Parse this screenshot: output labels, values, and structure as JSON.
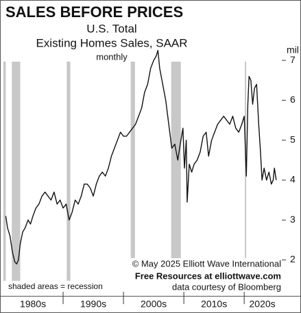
{
  "chart_data": {
    "type": "line",
    "title": "SALES BEFORE PRICES",
    "subtitle": [
      "U.S. Total",
      "Existing Homes Sales, SAAR",
      "monthly"
    ],
    "y_unit": "mil",
    "annotations": [
      "© May 2025  Elliott Wave International",
      "Free Resources at elliottwave.com",
      "data courtesy of Bloomberg"
    ],
    "recession_note": "shaded areas = recession",
    "recessions": [
      [
        1980.1,
        1980.5
      ],
      [
        1981.5,
        1982.9
      ],
      [
        1990.6,
        1991.2
      ],
      [
        2001.2,
        2001.9
      ],
      [
        2007.9,
        2009.5
      ],
      [
        2020.1,
        2020.3
      ]
    ],
    "recession_color": "#c8c8c8",
    "x": [
      1980.5,
      1980.8,
      1981.2,
      1981.6,
      1982.0,
      1982.3,
      1982.6,
      1982.9,
      1983.3,
      1983.7,
      1984.2,
      1984.6,
      1985.0,
      1985.5,
      1986.0,
      1986.5,
      1987.0,
      1987.5,
      1988.0,
      1988.5,
      1989.0,
      1989.5,
      1990.0,
      1990.5,
      1991.0,
      1991.5,
      1992.0,
      1992.5,
      1993.0,
      1993.5,
      1994.0,
      1994.5,
      1995.0,
      1995.5,
      1996.0,
      1996.5,
      1997.0,
      1997.5,
      1998.0,
      1998.5,
      1999.0,
      1999.5,
      2000.0,
      2000.5,
      2001.0,
      2001.5,
      2002.0,
      2002.5,
      2003.0,
      2003.5,
      2004.0,
      2004.5,
      2005.0,
      2005.4,
      2005.7,
      2006.0,
      2006.5,
      2007.0,
      2007.5,
      2008.0,
      2008.5,
      2009.0,
      2009.4,
      2009.85,
      2010.1,
      2010.4,
      2010.55,
      2010.9,
      2011.3,
      2011.7,
      2012.2,
      2012.7,
      2013.2,
      2013.7,
      2014.1,
      2014.6,
      2015.1,
      2015.6,
      2016.1,
      2016.6,
      2017.1,
      2017.6,
      2018.1,
      2018.6,
      2019.1,
      2019.6,
      2020.0,
      2020.35,
      2020.6,
      2020.8,
      2021.1,
      2021.4,
      2021.7,
      2022.05,
      2022.4,
      2022.7,
      2022.95,
      2023.3,
      2023.7,
      2024.1,
      2024.5,
      2024.8,
      2025.0,
      2025.3
    ],
    "series": [
      {
        "name": "Existing Home Sales",
        "color": "#111111",
        "values": [
          3.1,
          2.8,
          2.6,
          2.2,
          1.95,
          1.9,
          2.0,
          2.4,
          2.7,
          2.8,
          3.0,
          2.9,
          3.1,
          3.3,
          3.4,
          3.6,
          3.7,
          3.6,
          3.5,
          3.7,
          3.4,
          3.5,
          3.3,
          3.4,
          3.0,
          3.2,
          3.5,
          3.4,
          3.6,
          3.9,
          3.9,
          3.8,
          3.6,
          3.9,
          4.1,
          4.2,
          4.1,
          4.3,
          4.6,
          4.8,
          5.0,
          5.2,
          5.1,
          5.1,
          5.2,
          5.3,
          5.4,
          5.6,
          5.8,
          6.2,
          6.4,
          6.8,
          7.0,
          7.1,
          7.25,
          6.8,
          6.4,
          6.0,
          5.4,
          4.8,
          4.9,
          4.5,
          4.9,
          5.3,
          4.3,
          5.0,
          3.45,
          4.4,
          4.2,
          4.4,
          4.5,
          4.7,
          5.1,
          5.2,
          4.6,
          5.0,
          5.2,
          5.4,
          5.5,
          5.6,
          5.5,
          5.4,
          5.6,
          5.3,
          5.2,
          5.4,
          5.6,
          4.1,
          5.9,
          6.6,
          6.5,
          5.9,
          6.3,
          6.4,
          5.4,
          4.7,
          4.0,
          4.3,
          4.0,
          4.2,
          3.9,
          4.0,
          4.3,
          4.0
        ]
      }
    ],
    "xlim": [
      1980,
      2026
    ],
    "ylim": [
      1.1,
      8.1
    ],
    "yticks": [
      2,
      3,
      4,
      5,
      6,
      7
    ],
    "x_dividers": [
      1990,
      2000,
      2010,
      2020
    ],
    "xticks": [
      {
        "value": 1985,
        "label": "1980s"
      },
      {
        "value": 1995,
        "label": "1990s"
      },
      {
        "value": 2005,
        "label": "2000s"
      },
      {
        "value": 2015,
        "label": "2010s"
      },
      {
        "value": 2023,
        "label": "2020s"
      }
    ]
  }
}
